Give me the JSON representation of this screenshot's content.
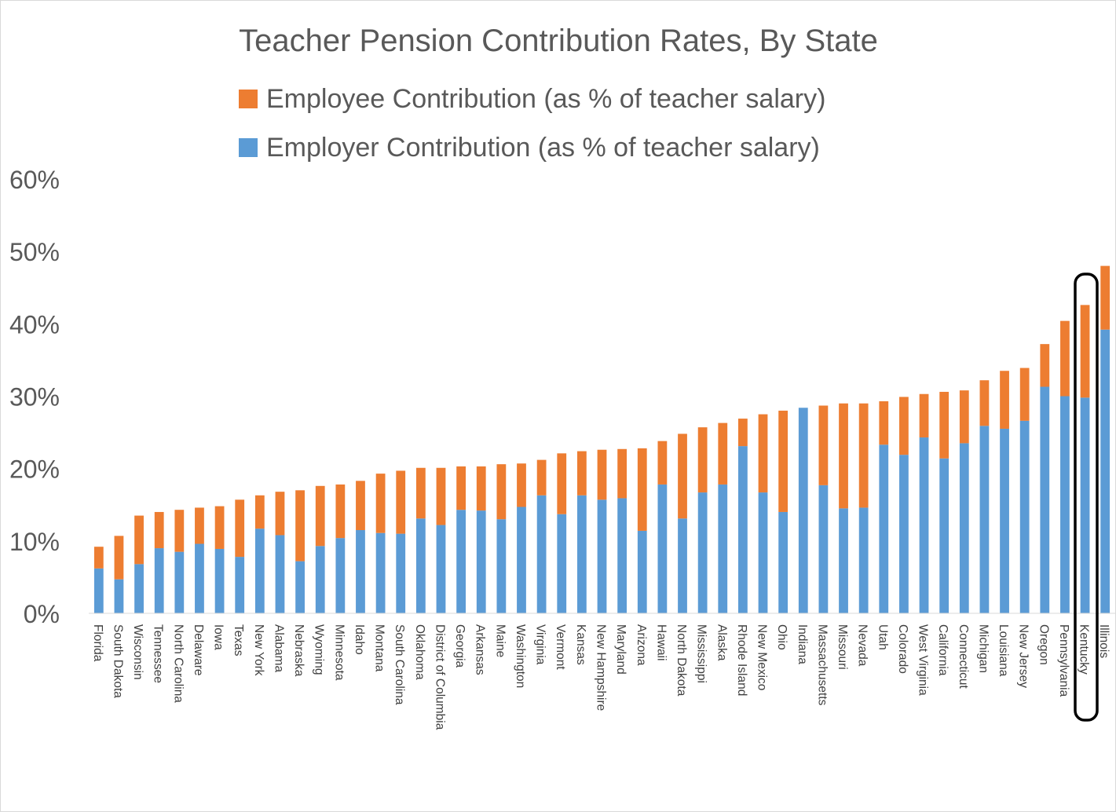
{
  "chart_data": {
    "type": "bar",
    "stacked": true,
    "title": "Teacher Pension Contribution Rates, By State",
    "xlabel": "",
    "ylabel": "",
    "ylim": [
      0,
      0.6
    ],
    "yticks": [
      "0%",
      "10%",
      "20%",
      "30%",
      "40%",
      "50%",
      "60%"
    ],
    "grid": false,
    "legend": "top",
    "categories": [
      "Florida",
      "South Dakota",
      "Wisconsin",
      "Tennessee",
      "North Carolina",
      "Delaware",
      "Iowa",
      "Texas",
      "New York",
      "Alabama",
      "Nebraska",
      "Wyoming",
      "Minnesota",
      "Idaho",
      "Montana",
      "South Carolina",
      "Oklahoma",
      "District of Columbia",
      "Georgia",
      "Arkansas",
      "Maine",
      "Washington",
      "Virginia",
      "Vermont",
      "Kansas",
      "New Hampshire",
      "Maryland",
      "Arizona",
      "Hawaii",
      "North Dakota",
      "Mississippi",
      "Alaska",
      "Rhode Island",
      "New Mexico",
      "Ohio",
      "Indiana",
      "Massachusetts",
      "Missouri",
      "Nevada",
      "Utah",
      "Colorado",
      "West Virginia",
      "California",
      "Connecticut",
      "Michigan",
      "Louisiana",
      "New Jersey",
      "Oregon",
      "Pennsylvania",
      "Kentucky",
      "Illinois"
    ],
    "series": [
      {
        "name": "Employer Contribution (as % of teacher salary)",
        "color": "#5b9bd5",
        "values": [
          0.062,
          0.047,
          0.068,
          0.09,
          0.085,
          0.096,
          0.089,
          0.078,
          0.117,
          0.108,
          0.072,
          0.093,
          0.104,
          0.115,
          0.111,
          0.11,
          0.131,
          0.122,
          0.143,
          0.142,
          0.13,
          0.147,
          0.163,
          0.137,
          0.163,
          0.157,
          0.159,
          0.114,
          0.178,
          0.131,
          0.167,
          0.178,
          0.231,
          0.167,
          0.14,
          0.284,
          0.177,
          0.145,
          0.146,
          0.233,
          0.219,
          0.243,
          0.214,
          0.235,
          0.259,
          0.255,
          0.266,
          0.313,
          0.3,
          0.298,
          0.392
        ]
      },
      {
        "name": "Employee Contribution (as % of teacher salary)",
        "color": "#ed7d31",
        "values": [
          0.03,
          0.06,
          0.067,
          0.05,
          0.058,
          0.05,
          0.059,
          0.079,
          0.046,
          0.06,
          0.098,
          0.083,
          0.074,
          0.068,
          0.082,
          0.087,
          0.07,
          0.079,
          0.06,
          0.061,
          0.076,
          0.06,
          0.049,
          0.084,
          0.061,
          0.069,
          0.068,
          0.114,
          0.06,
          0.117,
          0.09,
          0.085,
          0.038,
          0.108,
          0.14,
          0.0,
          0.11,
          0.145,
          0.144,
          0.06,
          0.08,
          0.06,
          0.092,
          0.073,
          0.063,
          0.08,
          0.073,
          0.059,
          0.104,
          0.128,
          0.088
        ]
      }
    ]
  }
}
